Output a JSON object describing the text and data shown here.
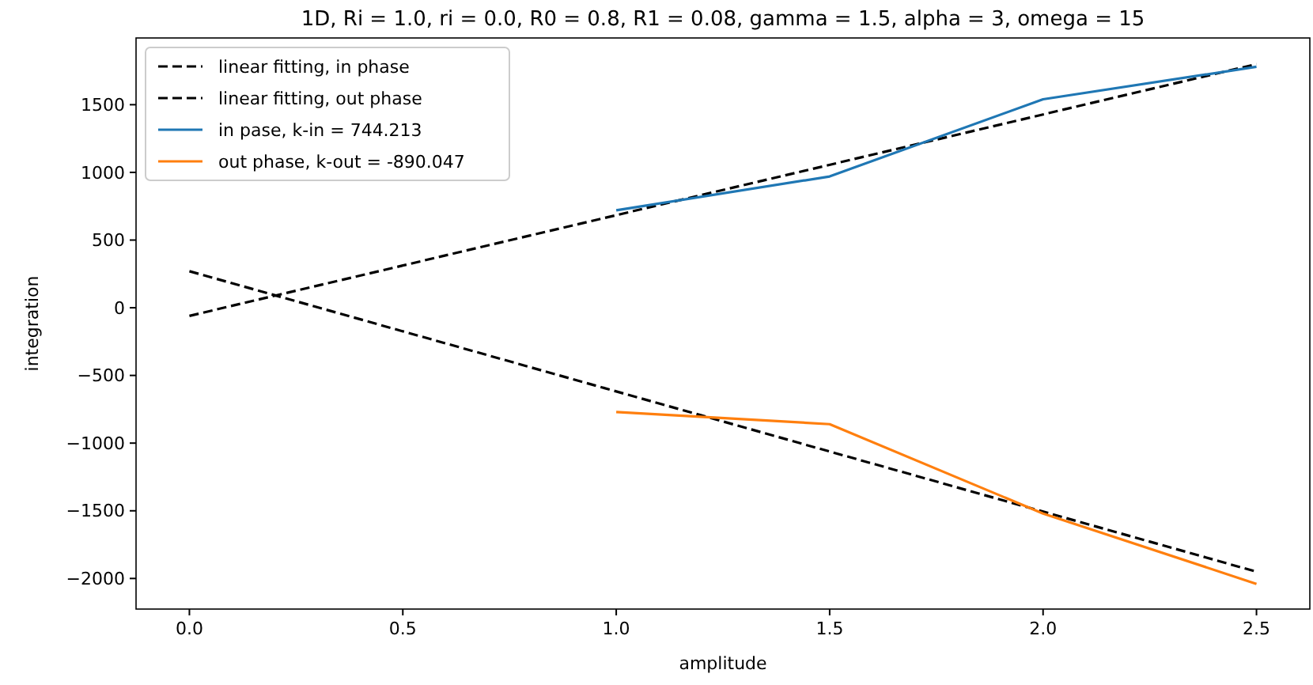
{
  "chart_data": {
    "type": "line",
    "title": "1D, Ri = 1.0, ri = 0.0, R0 = 0.8, R1 = 0.08, gamma = 1.5, alpha = 3, omega = 15",
    "xlabel": "amplitude",
    "ylabel": "integration",
    "xlim": [
      -0.125,
      2.625
    ],
    "xticks": [
      {
        "value": 0,
        "label": "0.0"
      },
      0.5,
      {
        "value": 1,
        "label": "1.0"
      },
      1.5,
      {
        "value": 2,
        "label": "2.0"
      },
      2.5
    ],
    "ylim": [
      -2226,
      1993
    ],
    "yticks": [
      {
        "value": -2000,
        "label": "−2000"
      },
      {
        "value": -1500,
        "label": "−1500"
      },
      {
        "value": -1000,
        "label": "−1000"
      },
      {
        "value": -500,
        "label": "−500"
      },
      0,
      500,
      1000,
      1500
    ],
    "grid": false,
    "legend": "top left",
    "line_style": "solid",
    "marker": "none",
    "series": [
      {
        "name": "linear fitting, in phase",
        "color": "#000000",
        "line_style": "dashed",
        "x": [
          0,
          2.5
        ],
        "values": [
          -60,
          1800
        ]
      },
      {
        "name": "linear fitting, out phase",
        "color": "#000000",
        "line_style": "dashed",
        "x": [
          0,
          2.5
        ],
        "values": [
          270,
          -1950
        ]
      },
      {
        "name": "in pase, k-in = 744.213",
        "color": "#1f77b4",
        "x": [
          1,
          1.5,
          2,
          2.5
        ],
        "values": [
          720,
          970,
          1540,
          1780
        ]
      },
      {
        "name": "out phase, k-out = -890.047",
        "color": "#ff7f0e",
        "x": [
          1,
          1.5,
          2,
          2.5
        ],
        "values": [
          -770,
          -860,
          -1520,
          -2040
        ]
      }
    ]
  }
}
